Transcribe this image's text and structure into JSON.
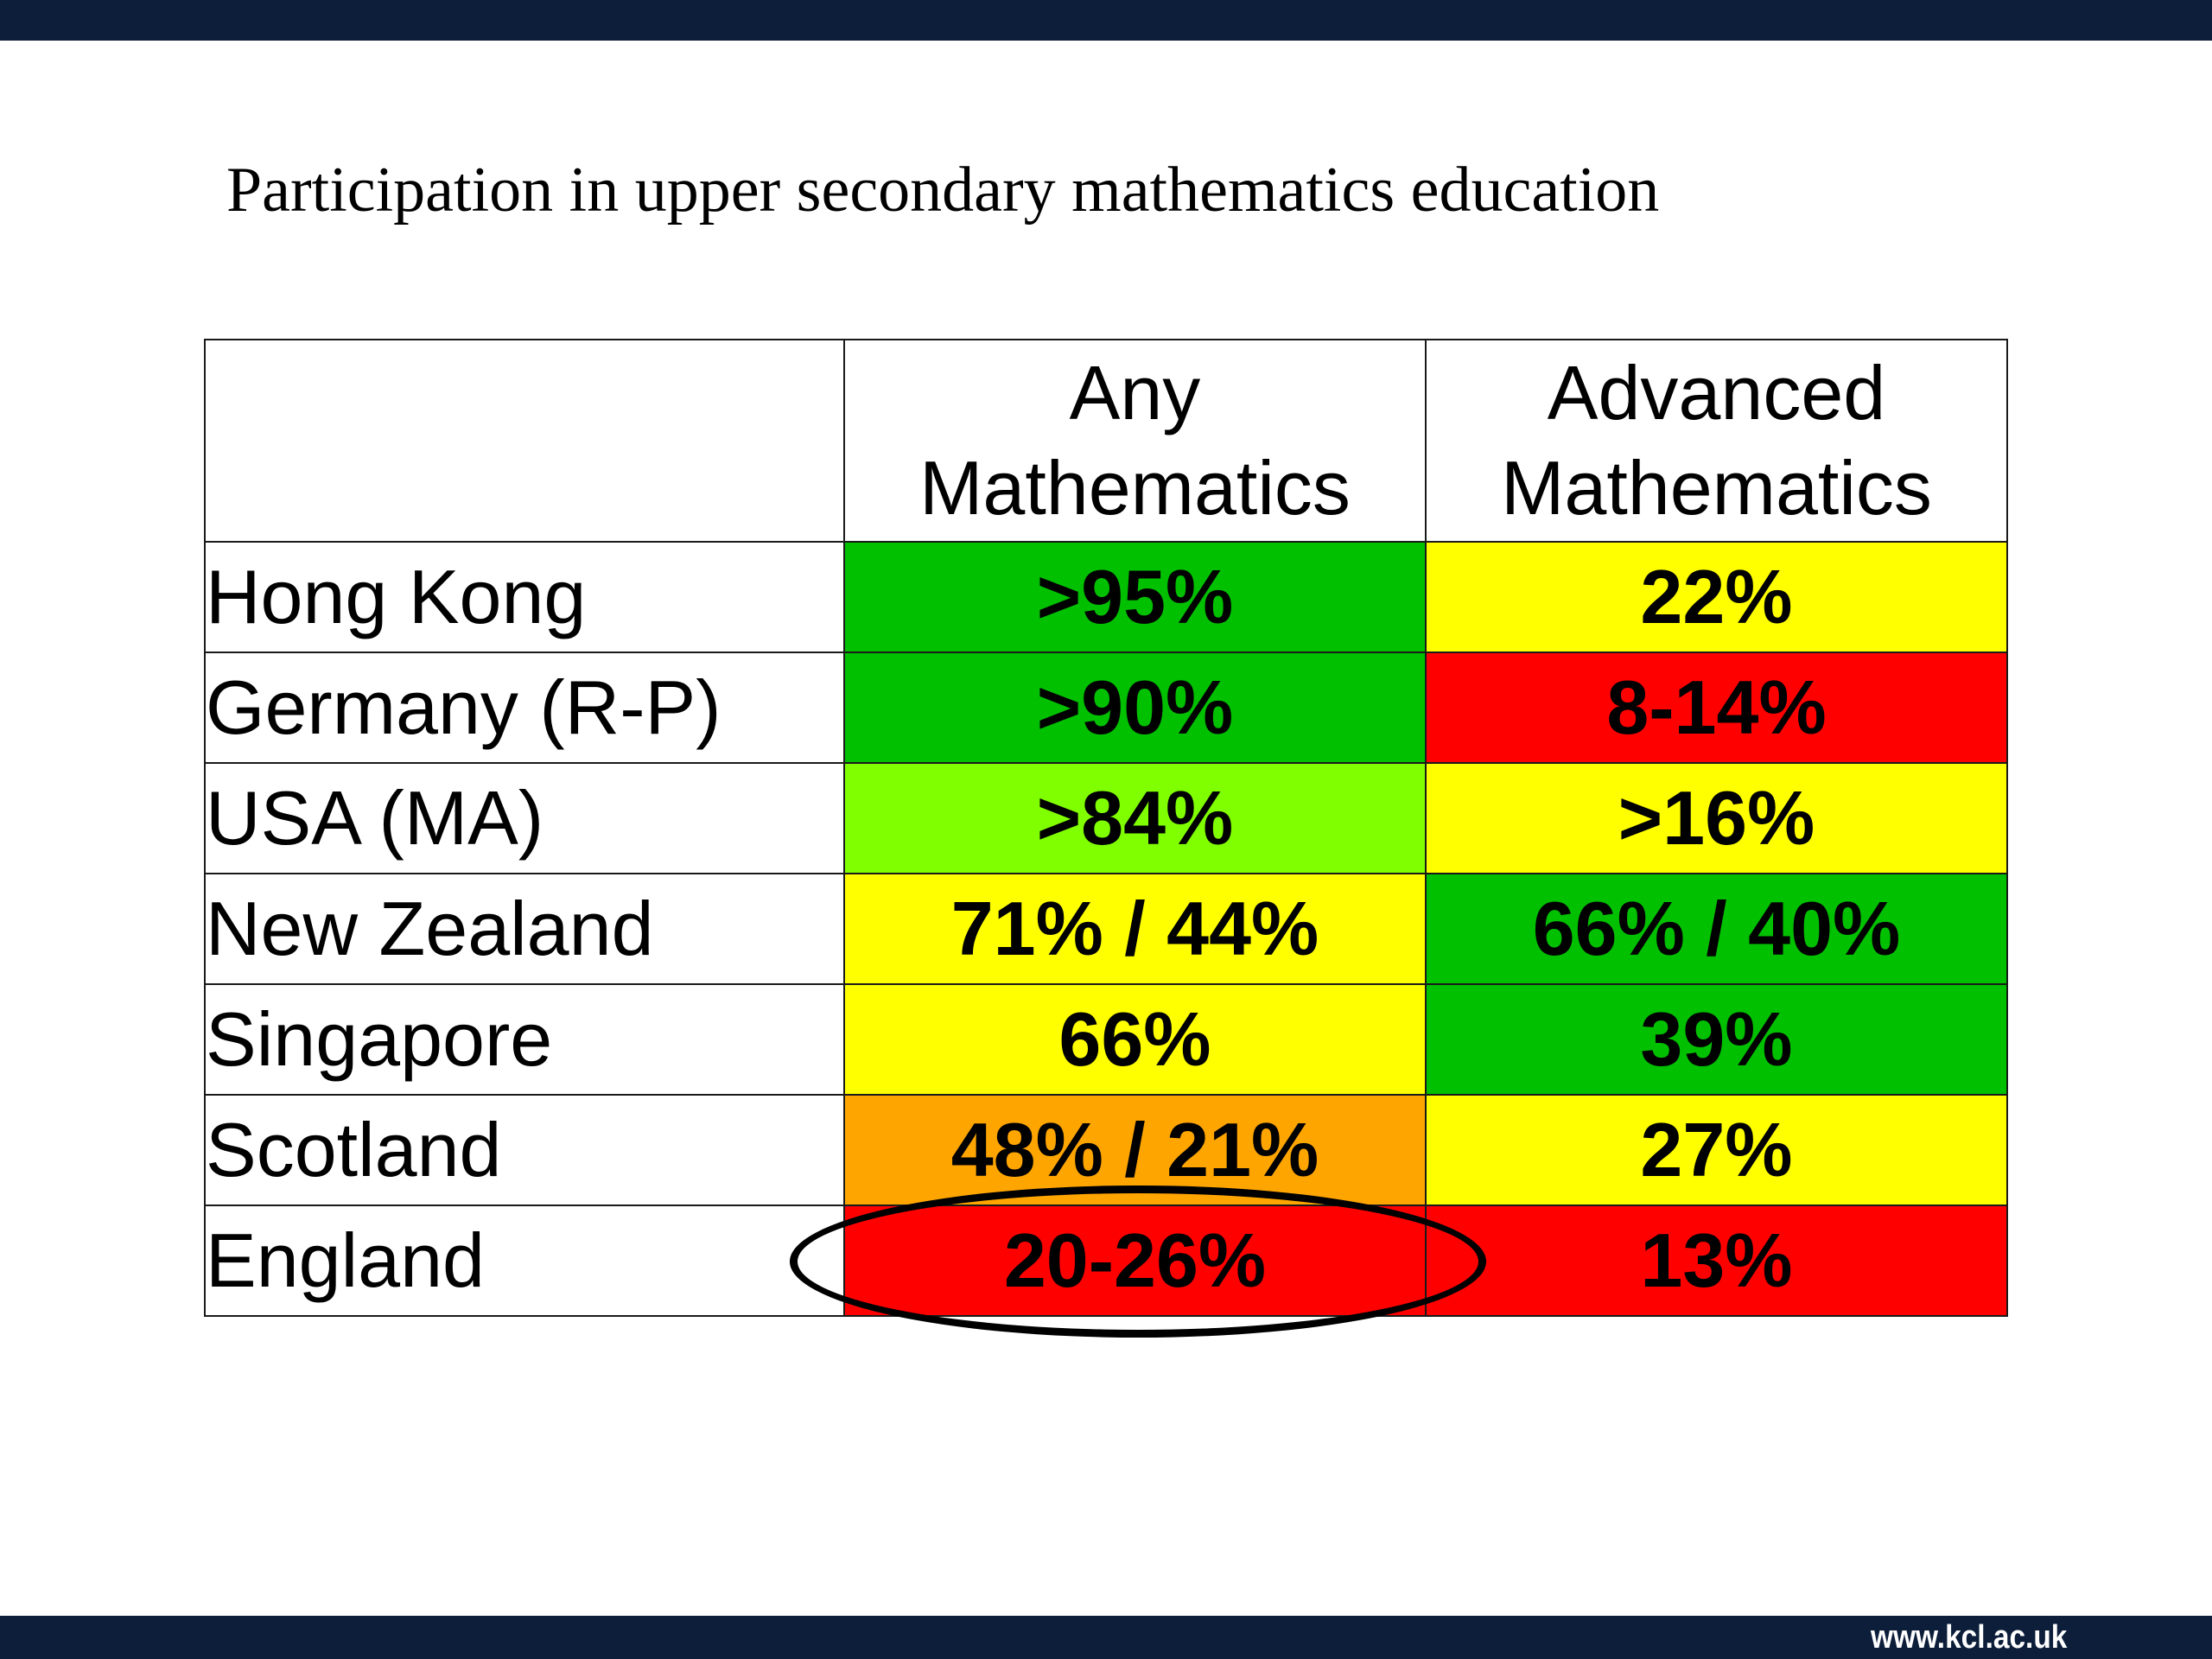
{
  "slide": {
    "title": "Participation in upper secondary mathematics education",
    "footer_url": "www.kcl.ac.uk"
  },
  "table": {
    "columns": [
      "",
      "Any Mathematics",
      "Advanced Mathematics"
    ],
    "header_lines": {
      "any": [
        "Any",
        "Mathematics"
      ],
      "advanced": [
        "Advanced",
        "Mathematics"
      ]
    },
    "rows": [
      {
        "country": "Hong Kong",
        "any": "&gt;95%",
        "any_color": "#00c000",
        "advanced": "22%",
        "advanced_color": "#ffff00"
      },
      {
        "country": "Germany (R-P)",
        "any": "&gt;90%",
        "any_color": "#00c000",
        "advanced": "8-14%",
        "advanced_color": "#ff0000"
      },
      {
        "country": "USA (MA)",
        "any": "&gt;84%",
        "any_color": "#80ff00",
        "advanced": "&gt;16%",
        "advanced_color": "#ffff00"
      },
      {
        "country": "New Zealand",
        "any": "71% / 44%",
        "any_color": "#ffff00",
        "advanced": "66% / 40%",
        "advanced_color": "#00c000"
      },
      {
        "country": "Singapore",
        "any": "66%",
        "any_color": "#ffff00",
        "advanced": "39%",
        "advanced_color": "#00c000"
      },
      {
        "country": "Scotland",
        "any": "48% / 21%",
        "any_color": "#ffa500",
        "advanced": "27%",
        "advanced_color": "#ffff00"
      },
      {
        "country": "England",
        "any": "20-26%",
        "any_color": "#ff0000",
        "advanced": "13%",
        "advanced_color": "#ff0000"
      }
    ],
    "highlighted_cell": {
      "row": "England",
      "column": "Any Mathematics"
    }
  }
}
